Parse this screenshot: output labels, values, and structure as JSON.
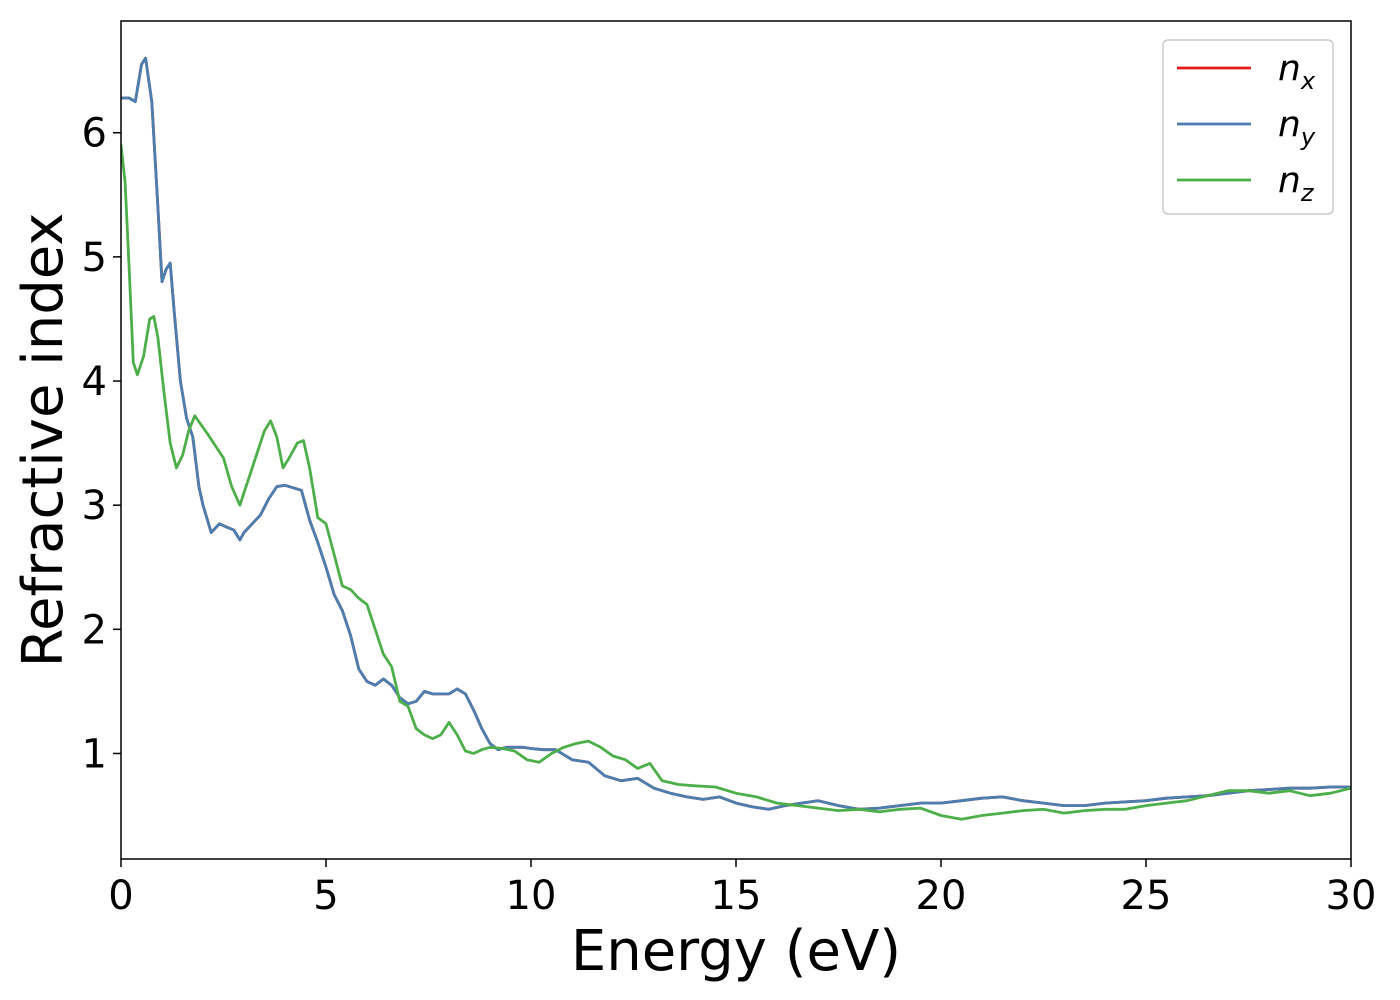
{
  "chart_data": {
    "type": "line",
    "xlabel": "Energy (eV)",
    "ylabel": "Refractive index",
    "xlim": [
      0,
      30
    ],
    "ylim": [
      0.15,
      6.9
    ],
    "xticks": [
      0,
      5,
      10,
      15,
      20,
      25,
      30
    ],
    "yticks": [
      1,
      2,
      3,
      4,
      5,
      6
    ],
    "grid": false,
    "legend_position": "top-right",
    "series": [
      {
        "name": "n_x",
        "label_base": "n",
        "label_sub": "x",
        "color": "#e41a1c",
        "x": [
          0,
          0.2,
          0.35,
          0.5,
          0.6,
          0.75,
          0.9,
          1.0,
          1.1,
          1.2,
          1.3,
          1.45,
          1.6,
          1.75,
          1.9,
          2.0,
          2.2,
          2.4,
          2.6,
          2.75,
          2.9,
          3.0,
          3.2,
          3.4,
          3.6,
          3.8,
          4.0,
          4.2,
          4.4,
          4.6,
          4.8,
          5.0,
          5.2,
          5.4,
          5.6,
          5.8,
          6.0,
          6.2,
          6.4,
          6.6,
          6.8,
          7.0,
          7.2,
          7.4,
          7.6,
          7.8,
          8.0,
          8.2,
          8.4,
          8.6,
          8.8,
          9.0,
          9.2,
          9.4,
          9.6,
          9.8,
          10.0,
          10.3,
          10.6,
          11.0,
          11.4,
          11.8,
          12.2,
          12.6,
          13.0,
          13.4,
          13.8,
          14.2,
          14.6,
          15.0,
          15.4,
          15.8,
          16.2,
          16.6,
          17.0,
          17.5,
          18.0,
          18.5,
          19.0,
          19.5,
          20.0,
          20.5,
          21.0,
          21.5,
          22.0,
          22.5,
          23.0,
          23.5,
          24.0,
          24.5,
          25.0,
          25.5,
          26.0,
          26.5,
          27.0,
          27.5,
          28.0,
          28.5,
          29.0,
          29.5,
          30.0
        ],
        "y": [
          6.28,
          6.28,
          6.25,
          6.55,
          6.6,
          6.25,
          5.4,
          4.8,
          4.9,
          4.95,
          4.55,
          4.0,
          3.7,
          3.55,
          3.15,
          3.0,
          2.78,
          2.85,
          2.82,
          2.8,
          2.72,
          2.78,
          2.85,
          2.92,
          3.05,
          3.15,
          3.16,
          3.14,
          3.12,
          2.88,
          2.7,
          2.5,
          2.28,
          2.15,
          1.95,
          1.68,
          1.58,
          1.55,
          1.6,
          1.55,
          1.45,
          1.4,
          1.42,
          1.5,
          1.48,
          1.48,
          1.48,
          1.52,
          1.48,
          1.35,
          1.2,
          1.08,
          1.03,
          1.05,
          1.05,
          1.05,
          1.04,
          1.03,
          1.03,
          0.95,
          0.93,
          0.82,
          0.78,
          0.8,
          0.72,
          0.68,
          0.65,
          0.63,
          0.65,
          0.6,
          0.57,
          0.55,
          0.58,
          0.6,
          0.62,
          0.58,
          0.55,
          0.56,
          0.58,
          0.6,
          0.6,
          0.62,
          0.64,
          0.65,
          0.62,
          0.6,
          0.58,
          0.58,
          0.6,
          0.61,
          0.62,
          0.64,
          0.65,
          0.66,
          0.68,
          0.7,
          0.71,
          0.72,
          0.72,
          0.73,
          0.73
        ]
      },
      {
        "name": "n_y",
        "label_base": "n",
        "label_sub": "y",
        "color": "#4a7fb0",
        "x": [
          0,
          0.2,
          0.35,
          0.5,
          0.6,
          0.75,
          0.9,
          1.0,
          1.1,
          1.2,
          1.3,
          1.45,
          1.6,
          1.75,
          1.9,
          2.0,
          2.2,
          2.4,
          2.6,
          2.75,
          2.9,
          3.0,
          3.2,
          3.4,
          3.6,
          3.8,
          4.0,
          4.2,
          4.4,
          4.6,
          4.8,
          5.0,
          5.2,
          5.4,
          5.6,
          5.8,
          6.0,
          6.2,
          6.4,
          6.6,
          6.8,
          7.0,
          7.2,
          7.4,
          7.6,
          7.8,
          8.0,
          8.2,
          8.4,
          8.6,
          8.8,
          9.0,
          9.2,
          9.4,
          9.6,
          9.8,
          10.0,
          10.3,
          10.6,
          11.0,
          11.4,
          11.8,
          12.2,
          12.6,
          13.0,
          13.4,
          13.8,
          14.2,
          14.6,
          15.0,
          15.4,
          15.8,
          16.2,
          16.6,
          17.0,
          17.5,
          18.0,
          18.5,
          19.0,
          19.5,
          20.0,
          20.5,
          21.0,
          21.5,
          22.0,
          22.5,
          23.0,
          23.5,
          24.0,
          24.5,
          25.0,
          25.5,
          26.0,
          26.5,
          27.0,
          27.5,
          28.0,
          28.5,
          29.0,
          29.5,
          30.0
        ],
        "y": [
          6.28,
          6.28,
          6.25,
          6.55,
          6.6,
          6.25,
          5.4,
          4.8,
          4.9,
          4.95,
          4.55,
          4.0,
          3.7,
          3.55,
          3.15,
          3.0,
          2.78,
          2.85,
          2.82,
          2.8,
          2.72,
          2.78,
          2.85,
          2.92,
          3.05,
          3.15,
          3.16,
          3.14,
          3.12,
          2.88,
          2.7,
          2.5,
          2.28,
          2.15,
          1.95,
          1.68,
          1.58,
          1.55,
          1.6,
          1.55,
          1.45,
          1.4,
          1.42,
          1.5,
          1.48,
          1.48,
          1.48,
          1.52,
          1.48,
          1.35,
          1.2,
          1.08,
          1.03,
          1.05,
          1.05,
          1.05,
          1.04,
          1.03,
          1.03,
          0.95,
          0.93,
          0.82,
          0.78,
          0.8,
          0.72,
          0.68,
          0.65,
          0.63,
          0.65,
          0.6,
          0.57,
          0.55,
          0.58,
          0.6,
          0.62,
          0.58,
          0.55,
          0.56,
          0.58,
          0.6,
          0.6,
          0.62,
          0.64,
          0.65,
          0.62,
          0.6,
          0.58,
          0.58,
          0.6,
          0.61,
          0.62,
          0.64,
          0.65,
          0.66,
          0.68,
          0.7,
          0.71,
          0.72,
          0.72,
          0.73,
          0.73
        ]
      },
      {
        "name": "n_z",
        "label_base": "n",
        "label_sub": "z",
        "color": "#4daf4a",
        "x": [
          0,
          0.1,
          0.2,
          0.3,
          0.4,
          0.55,
          0.7,
          0.8,
          0.9,
          1.05,
          1.2,
          1.35,
          1.5,
          1.65,
          1.8,
          1.95,
          2.1,
          2.3,
          2.5,
          2.7,
          2.9,
          3.1,
          3.3,
          3.5,
          3.65,
          3.8,
          3.95,
          4.1,
          4.3,
          4.45,
          4.6,
          4.8,
          5.0,
          5.2,
          5.4,
          5.6,
          5.8,
          6.0,
          6.2,
          6.4,
          6.6,
          6.8,
          7.0,
          7.2,
          7.4,
          7.6,
          7.8,
          8.0,
          8.2,
          8.4,
          8.6,
          8.8,
          9.0,
          9.3,
          9.6,
          9.9,
          10.2,
          10.5,
          10.8,
          11.1,
          11.4,
          11.7,
          12.0,
          12.3,
          12.6,
          12.9,
          13.2,
          13.6,
          14.0,
          14.5,
          15.0,
          15.5,
          16.0,
          16.5,
          17.0,
          17.5,
          18.0,
          18.5,
          19.0,
          19.5,
          20.0,
          20.5,
          21.0,
          21.5,
          22.0,
          22.5,
          23.0,
          23.5,
          24.0,
          24.5,
          25.0,
          25.5,
          26.0,
          26.5,
          27.0,
          27.5,
          28.0,
          28.5,
          29.0,
          29.5,
          30.0
        ],
        "y": [
          5.9,
          5.6,
          4.9,
          4.15,
          4.05,
          4.2,
          4.5,
          4.52,
          4.35,
          3.9,
          3.5,
          3.3,
          3.4,
          3.6,
          3.72,
          3.65,
          3.58,
          3.48,
          3.38,
          3.15,
          3.0,
          3.2,
          3.4,
          3.6,
          3.68,
          3.55,
          3.3,
          3.38,
          3.5,
          3.52,
          3.3,
          2.9,
          2.85,
          2.6,
          2.35,
          2.32,
          2.25,
          2.2,
          2.0,
          1.8,
          1.7,
          1.42,
          1.38,
          1.2,
          1.15,
          1.12,
          1.15,
          1.25,
          1.15,
          1.02,
          1.0,
          1.03,
          1.05,
          1.04,
          1.02,
          0.95,
          0.93,
          1.0,
          1.05,
          1.08,
          1.1,
          1.05,
          0.98,
          0.95,
          0.88,
          0.92,
          0.78,
          0.75,
          0.74,
          0.73,
          0.68,
          0.65,
          0.6,
          0.58,
          0.56,
          0.54,
          0.55,
          0.53,
          0.55,
          0.56,
          0.5,
          0.47,
          0.5,
          0.52,
          0.54,
          0.55,
          0.52,
          0.54,
          0.55,
          0.55,
          0.58,
          0.6,
          0.62,
          0.66,
          0.7,
          0.7,
          0.68,
          0.7,
          0.66,
          0.68,
          0.72
        ]
      }
    ]
  }
}
